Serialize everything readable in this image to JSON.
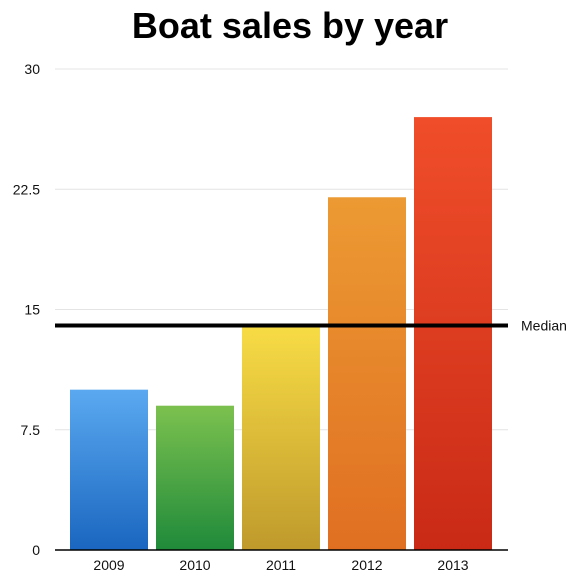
{
  "chart_data": {
    "type": "bar",
    "title": "Boat sales by year",
    "categories": [
      "2009",
      "2010",
      "2011",
      "2012",
      "2013"
    ],
    "values": [
      10,
      9,
      14,
      22,
      27
    ],
    "ylim": [
      0,
      30
    ],
    "yticks": [
      "0",
      "7.5",
      "15",
      "22.5",
      "30"
    ],
    "grid": true,
    "reference_line": {
      "label": "Median",
      "value": 14,
      "color": "#000000"
    },
    "bar_colors": [
      {
        "top": "#5aa9f0",
        "bottom": "#1a66c0"
      },
      {
        "top": "#7cc14f",
        "bottom": "#1f8a3a"
      },
      {
        "top": "#f8dc45",
        "bottom": "#bf9a2c"
      },
      {
        "top": "#ec9a33",
        "bottom": "#e06f22"
      },
      {
        "top": "#f04e2a",
        "bottom": "#c92a16"
      }
    ]
  }
}
